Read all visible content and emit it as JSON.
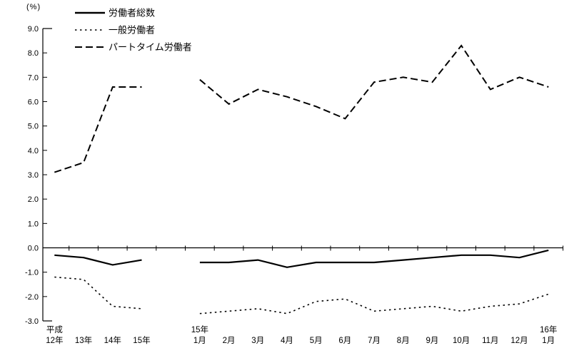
{
  "chart_data": {
    "type": "line",
    "title": "",
    "xlabel": "",
    "ylabel": "(%)",
    "ylim": [
      -3.0,
      9.0
    ],
    "y_ticks": [
      9.0,
      8.0,
      7.0,
      6.0,
      5.0,
      4.0,
      3.0,
      2.0,
      1.0,
      0.0,
      -1.0,
      -2.0,
      -3.0
    ],
    "grid": false,
    "legend_position": "top-left",
    "line_color": "#000000",
    "categories": [
      {
        "top": "平成",
        "label": "12年"
      },
      {
        "top": "",
        "label": "13年"
      },
      {
        "top": "",
        "label": "14年"
      },
      {
        "top": "",
        "label": "15年"
      },
      {
        "top": "",
        "label": ""
      },
      {
        "top": "15年",
        "label": "1月"
      },
      {
        "top": "",
        "label": "2月"
      },
      {
        "top": "",
        "label": "3月"
      },
      {
        "top": "",
        "label": "4月"
      },
      {
        "top": "",
        "label": "5月"
      },
      {
        "top": "",
        "label": "6月"
      },
      {
        "top": "",
        "label": "7月"
      },
      {
        "top": "",
        "label": "8月"
      },
      {
        "top": "",
        "label": "9月"
      },
      {
        "top": "",
        "label": "10月"
      },
      {
        "top": "",
        "label": "11月"
      },
      {
        "top": "",
        "label": "12月"
      },
      {
        "top": "16年",
        "label": "1月"
      }
    ],
    "series": [
      {
        "key": "total-workers",
        "name": "労働者総数",
        "style": "solid",
        "values": [
          -0.3,
          -0.4,
          -0.7,
          -0.5,
          null,
          -0.6,
          -0.6,
          -0.5,
          -0.8,
          -0.6,
          -0.6,
          -0.6,
          -0.5,
          -0.4,
          -0.3,
          -0.3,
          -0.4,
          -0.1
        ]
      },
      {
        "key": "general-workers",
        "name": "一般労働者",
        "style": "dotted",
        "values": [
          -1.2,
          -1.3,
          -2.4,
          -2.5,
          null,
          -2.7,
          -2.6,
          -2.5,
          -2.7,
          -2.2,
          -2.1,
          -2.6,
          -2.5,
          -2.4,
          -2.6,
          -2.4,
          -2.3,
          -1.9
        ]
      },
      {
        "key": "part-time-workers",
        "name": "パートタイム労働者",
        "style": "dashed",
        "values": [
          3.1,
          3.5,
          6.6,
          6.6,
          null,
          6.9,
          5.9,
          6.5,
          6.2,
          5.8,
          5.3,
          6.8,
          7.0,
          6.8,
          8.3,
          6.5,
          7.0,
          6.6
        ]
      }
    ]
  }
}
